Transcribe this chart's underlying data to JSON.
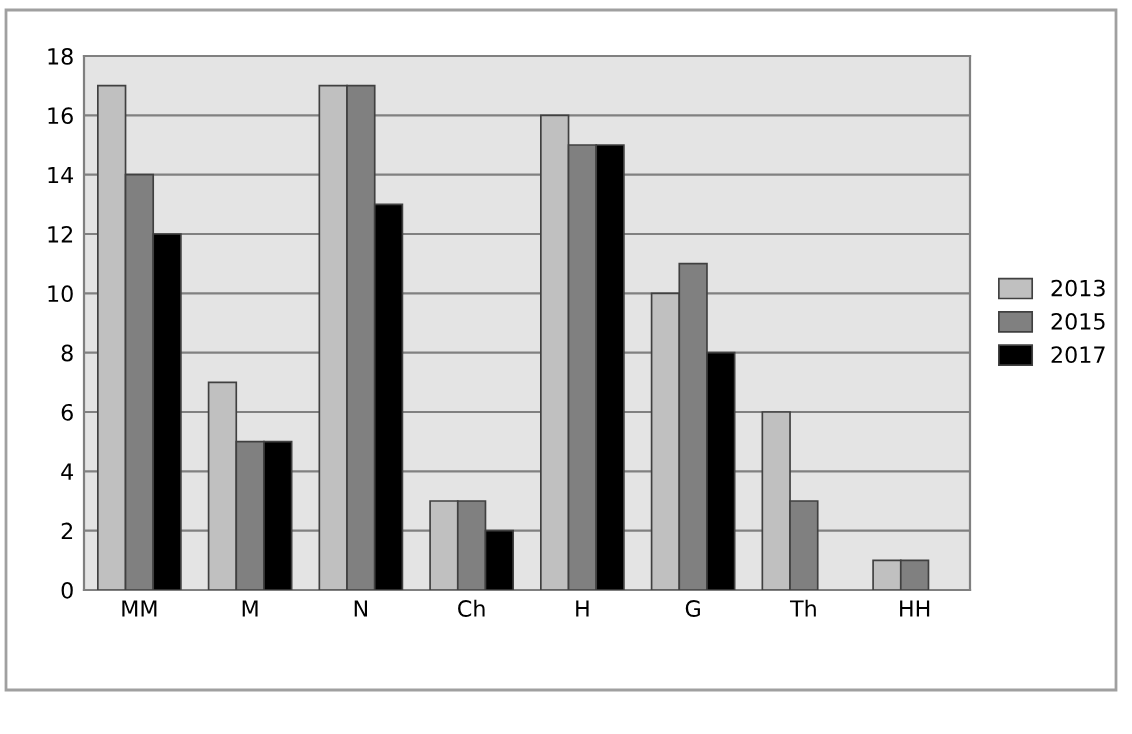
{
  "chart_data": {
    "type": "bar",
    "categories": [
      "MM",
      "M",
      "N",
      "Ch",
      "H",
      "G",
      "Th",
      "HH"
    ],
    "series": [
      {
        "name": "2013",
        "color": "#c0c0c0",
        "values": [
          17,
          7,
          17,
          3,
          16,
          10,
          6,
          1
        ]
      },
      {
        "name": "2015",
        "color": "#808080",
        "values": [
          14,
          5,
          17,
          3,
          15,
          11,
          3,
          1
        ]
      },
      {
        "name": "2017",
        "color": "#000000",
        "values": [
          12,
          5,
          13,
          2,
          15,
          8,
          null,
          null
        ]
      }
    ],
    "ylim": [
      0,
      18
    ],
    "yticks": [
      0,
      2,
      4,
      6,
      8,
      10,
      12,
      14,
      16,
      18
    ],
    "grid": "y",
    "legend": "right"
  }
}
